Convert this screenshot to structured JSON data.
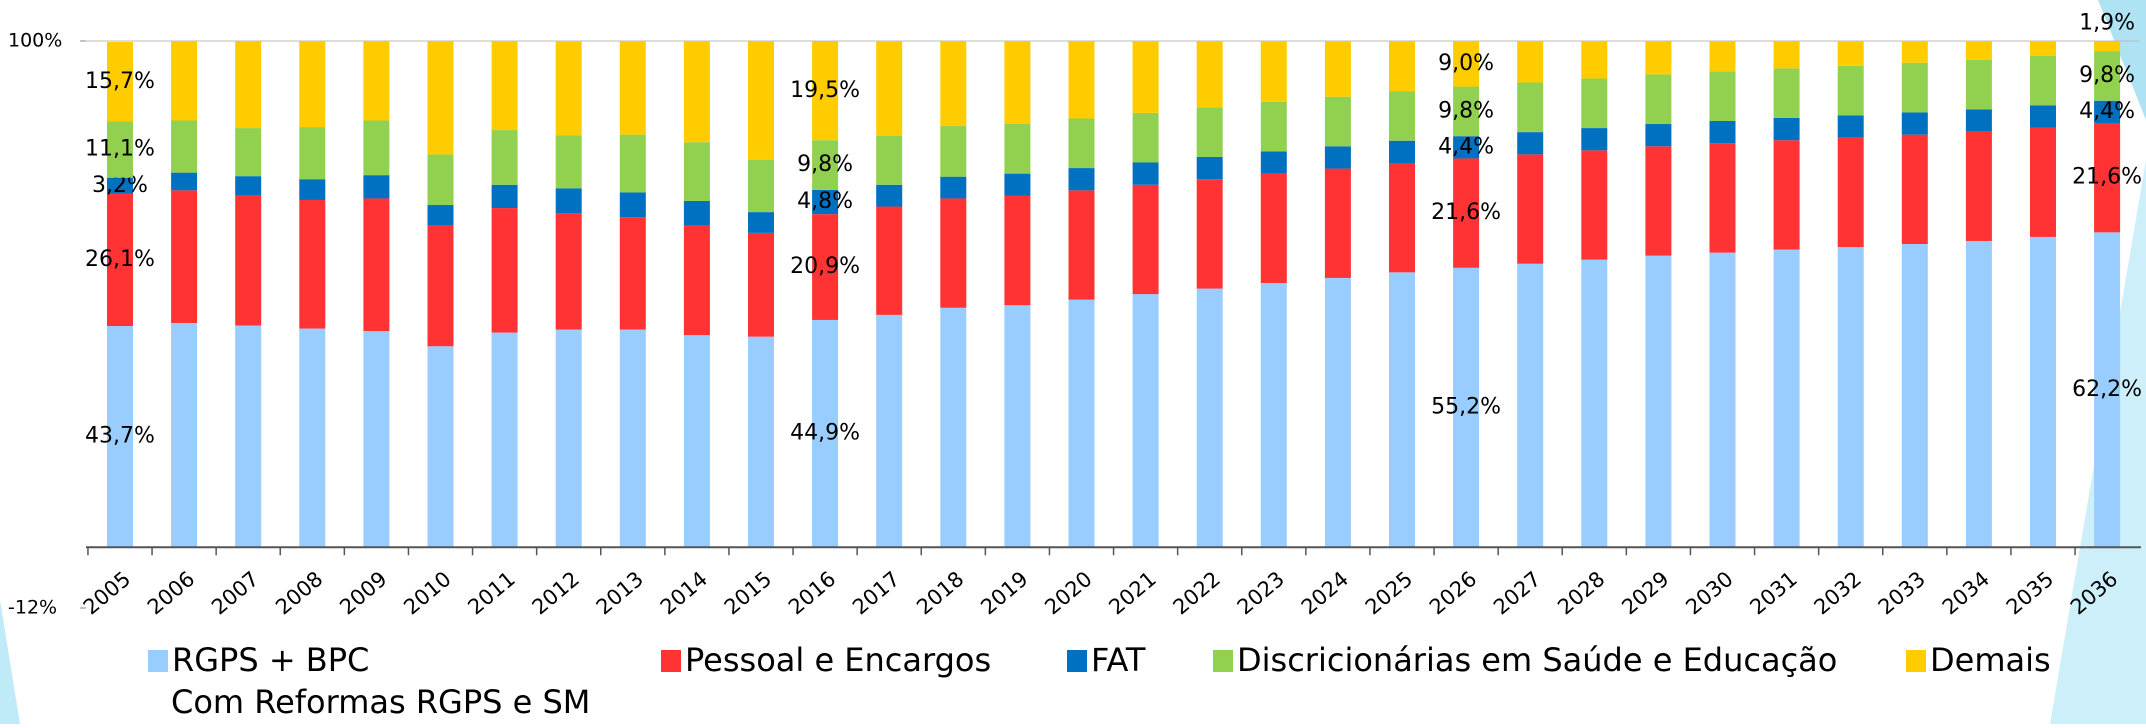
{
  "chart_data": {
    "type": "stacked_bar",
    "categories": [
      "2005",
      "2006",
      "2007",
      "2008",
      "2009",
      "2010",
      "2011",
      "2012",
      "2013",
      "2014",
      "2015",
      "2016",
      "2017",
      "2018",
      "2019",
      "2020",
      "2021",
      "2022",
      "2023",
      "2024",
      "2025",
      "2026",
      "2027",
      "2028",
      "2029",
      "2030",
      "2031",
      "2032",
      "2033",
      "2034",
      "2035",
      "2036"
    ],
    "series": [
      {
        "name": "RGPS + BPC",
        "color": "#99ccff",
        "values": [
          43.7,
          44.3,
          43.8,
          43.2,
          42.7,
          39.7,
          42.4,
          43.0,
          43.0,
          41.9,
          41.6,
          44.9,
          45.9,
          47.3,
          47.8,
          48.9,
          50.0,
          51.1,
          52.2,
          53.2,
          54.3,
          55.2,
          56.0,
          56.8,
          57.6,
          58.2,
          58.8,
          59.3,
          59.9,
          60.5,
          61.3,
          62.2
        ],
        "value_labels": [
          "43,7%",
          null,
          null,
          null,
          null,
          null,
          null,
          null,
          null,
          null,
          null,
          "44,9%",
          null,
          null,
          null,
          null,
          null,
          null,
          null,
          null,
          null,
          "55,2%",
          null,
          null,
          null,
          null,
          null,
          null,
          null,
          null,
          null,
          "62,2%"
        ]
      },
      {
        "name": "Pessoal e Encargos",
        "color": "#ff3333",
        "values": [
          26.1,
          26.2,
          25.7,
          25.4,
          26.2,
          23.8,
          24.6,
          23.0,
          22.2,
          21.6,
          20.5,
          20.9,
          21.4,
          21.6,
          21.6,
          21.6,
          21.6,
          21.6,
          21.6,
          21.6,
          21.6,
          21.6,
          21.6,
          21.6,
          21.6,
          21.6,
          21.6,
          21.6,
          21.6,
          21.6,
          21.6,
          21.6
        ],
        "value_labels": [
          "26,1%",
          null,
          null,
          null,
          null,
          null,
          null,
          null,
          null,
          null,
          null,
          "20,9%",
          null,
          null,
          null,
          null,
          null,
          null,
          null,
          null,
          null,
          "21,6%",
          null,
          null,
          null,
          null,
          null,
          null,
          null,
          null,
          null,
          "21,6%"
        ]
      },
      {
        "name": "FAT",
        "color": "#0070c0",
        "values": [
          3.2,
          3.5,
          3.8,
          4.1,
          4.6,
          4.1,
          4.6,
          4.9,
          4.9,
          4.9,
          4.1,
          4.8,
          4.3,
          4.3,
          4.4,
          4.4,
          4.4,
          4.4,
          4.4,
          4.4,
          4.4,
          4.4,
          4.4,
          4.4,
          4.4,
          4.4,
          4.4,
          4.4,
          4.4,
          4.4,
          4.4,
          4.4
        ],
        "value_labels": [
          "3,2%",
          null,
          null,
          null,
          null,
          null,
          null,
          null,
          null,
          null,
          null,
          "4,8%",
          null,
          null,
          null,
          null,
          null,
          null,
          null,
          null,
          null,
          "4,4%",
          null,
          null,
          null,
          null,
          null,
          null,
          null,
          null,
          null,
          "4,4%"
        ]
      },
      {
        "name": "Discricionárias em Saúde e Educação",
        "color": "#92d050",
        "values": [
          11.1,
          10.3,
          9.5,
          10.3,
          10.8,
          10.0,
          10.8,
          10.5,
          11.4,
          11.6,
          10.3,
          9.8,
          9.7,
          10.0,
          9.8,
          9.8,
          9.8,
          9.8,
          9.8,
          9.8,
          9.8,
          9.8,
          9.8,
          9.8,
          9.8,
          9.8,
          9.8,
          9.8,
          9.8,
          9.8,
          9.8,
          9.8
        ],
        "value_labels": [
          "11,1%",
          null,
          null,
          null,
          null,
          null,
          null,
          null,
          null,
          null,
          null,
          "9,8%",
          null,
          null,
          null,
          null,
          null,
          null,
          null,
          null,
          null,
          "9,8%",
          null,
          null,
          null,
          null,
          null,
          null,
          null,
          null,
          null,
          "9,8%"
        ]
      },
      {
        "name": "Demais",
        "color": "#ffcc00",
        "values": [
          15.7,
          15.7,
          17.2,
          17.0,
          15.7,
          22.4,
          17.6,
          18.6,
          18.5,
          20.0,
          23.5,
          19.5,
          18.7,
          16.8,
          16.4,
          15.3,
          14.2,
          13.1,
          12.0,
          11.0,
          9.9,
          9.0,
          8.2,
          7.4,
          6.6,
          6.0,
          5.4,
          4.9,
          4.3,
          3.7,
          2.9,
          1.9
        ],
        "value_labels": [
          "15,7%",
          null,
          null,
          null,
          null,
          null,
          null,
          null,
          null,
          null,
          null,
          "19,5%",
          null,
          null,
          null,
          null,
          null,
          null,
          null,
          null,
          null,
          "9,0%",
          null,
          null,
          null,
          null,
          null,
          null,
          null,
          null,
          null,
          "1,9%"
        ]
      }
    ],
    "ylim": [
      -12,
      100
    ],
    "yticks": [
      {
        "value": -12,
        "label": "-12%"
      },
      {
        "value": 100,
        "label": "100%"
      }
    ],
    "annotation": "Com Reformas RGPS e SM"
  }
}
